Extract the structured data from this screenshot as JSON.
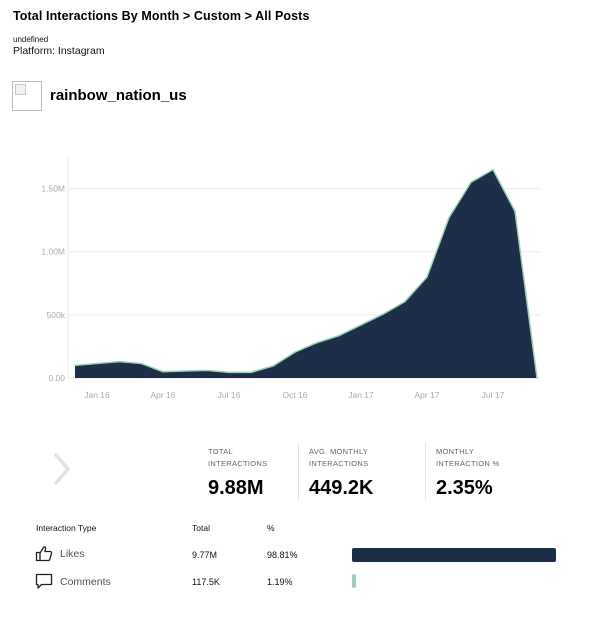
{
  "header": {
    "title": "Total Interactions By Month > Custom > All Posts",
    "subtitle": "undefined",
    "platform": "Platform: Instagram"
  },
  "account": {
    "username": "rainbow_nation_us"
  },
  "chart_data": {
    "type": "area",
    "title": "",
    "xlabel": "",
    "ylabel": "",
    "ylim": [
      0,
      1750000
    ],
    "y_ticks": [
      "0.00",
      "500k",
      "1.00M",
      "1.50M"
    ],
    "x_ticks": [
      "Jan 16",
      "Apr 16",
      "Jul 16",
      "Oct 16",
      "Jan 17",
      "Apr 17",
      "Jul 17"
    ],
    "x": [
      "Dec 15",
      "Jan 16",
      "Feb 16",
      "Mar 16",
      "Apr 16",
      "May 16",
      "Jun 16",
      "Jul 16",
      "Aug 16",
      "Sep 16",
      "Oct 16",
      "Nov 16",
      "Dec 16",
      "Jan 17",
      "Feb 17",
      "Mar 17",
      "Apr 17",
      "May 17",
      "Jun 17",
      "Jul 17",
      "Aug 17",
      "Sep 17"
    ],
    "series": [
      {
        "values": [
          100000,
          115000,
          130000,
          115000,
          50000,
          55000,
          60000,
          45000,
          45000,
          95000,
          205000,
          280000,
          335000,
          420000,
          505000,
          605000,
          800000,
          1270000,
          1550000,
          1650000,
          1320000,
          0
        ]
      }
    ],
    "fill_color": "#1c2e48",
    "edge_color": "#9fcfb4",
    "grid": true
  },
  "stats": {
    "nav_icon": "chevron-right-icon",
    "items": [
      {
        "label_line1": "TOTAL",
        "label_line2": "INTERACTIONS",
        "value": "9.88M"
      },
      {
        "label_line1": "AVG. MONTHLY",
        "label_line2": "INTERACTIONS",
        "value": "449.2K"
      },
      {
        "label_line1": "MONTHLY",
        "label_line2": "INTERACTION %",
        "value": "2.35%"
      }
    ]
  },
  "table": {
    "headers": {
      "type": "Interaction Type",
      "total": "Total",
      "percent": "%"
    },
    "rows": [
      {
        "icon": "thumbs-up-icon",
        "type": "Likes",
        "total": "9.77M",
        "percent": "98.81%",
        "share": 0.9881,
        "color": "#1c2e48"
      },
      {
        "icon": "comment-icon",
        "type": "Comments",
        "total": "117.5K",
        "percent": "1.19%",
        "share": 0.0119,
        "color": "#9fcfb4"
      }
    ]
  }
}
